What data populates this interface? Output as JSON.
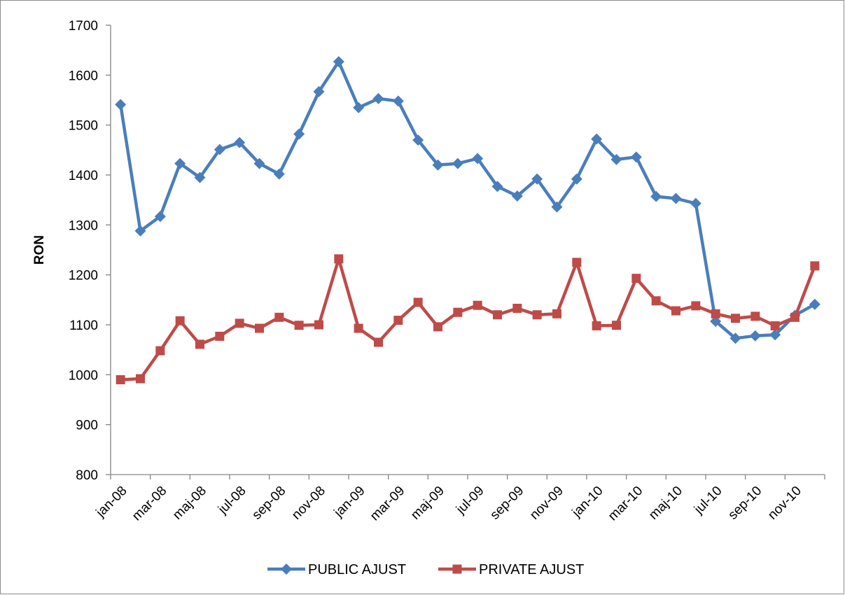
{
  "chart_data": {
    "type": "line",
    "title": "",
    "xlabel": "",
    "ylabel": "RON",
    "ylim": [
      800,
      1700
    ],
    "yticks": [
      800,
      900,
      1000,
      1100,
      1200,
      1300,
      1400,
      1500,
      1600,
      1700
    ],
    "grid": false,
    "legend_position": "bottom",
    "x": [
      "jan-08",
      "feb-08",
      "mar-08",
      "apr-08",
      "maj-08",
      "jun-08",
      "jul-08",
      "aug-08",
      "sep-08",
      "oct-08",
      "nov-08",
      "dec-08",
      "jan-09",
      "feb-09",
      "mar-09",
      "apr-09",
      "maj-09",
      "jun-09",
      "jul-09",
      "aug-09",
      "sep-09",
      "oct-09",
      "nov-09",
      "dec-09",
      "jan-10",
      "feb-10",
      "mar-10",
      "apr-10",
      "maj-10",
      "jun-10",
      "jul-10",
      "aug-10",
      "sep-10",
      "oct-10",
      "nov-10",
      "dec-10"
    ],
    "xtick_labels": [
      "jan-08",
      "mar-08",
      "maj-08",
      "jul-08",
      "sep-08",
      "nov-08",
      "jan-09",
      "mar-09",
      "maj-09",
      "jul-09",
      "sep-09",
      "nov-09",
      "jan-10",
      "mar-10",
      "maj-10",
      "jul-10",
      "sep-10",
      "nov-10"
    ],
    "series": [
      {
        "name": "PUBLIC AJUST",
        "color": "#4a7ebb",
        "marker": "diamond",
        "values": [
          1541,
          1288,
          1317,
          1423,
          1395,
          1451,
          1465,
          1423,
          1402,
          1482,
          1567,
          1627,
          1535,
          1553,
          1548,
          1470,
          1420,
          1423,
          1433,
          1377,
          1358,
          1392,
          1336,
          1392,
          1472,
          1431,
          1436,
          1357,
          1353,
          1343,
          1107,
          1073,
          1078,
          1080,
          1119,
          1141
        ]
      },
      {
        "name": "PRIVATE AJUST",
        "color": "#be4b48",
        "marker": "square",
        "values": [
          990,
          992,
          1048,
          1108,
          1061,
          1077,
          1103,
          1093,
          1115,
          1099,
          1100,
          1232,
          1093,
          1065,
          1109,
          1145,
          1096,
          1125,
          1139,
          1120,
          1133,
          1120,
          1122,
          1225,
          1098,
          1099,
          1193,
          1148,
          1128,
          1138,
          1122,
          1113,
          1117,
          1098,
          1115,
          1218
        ]
      }
    ]
  }
}
